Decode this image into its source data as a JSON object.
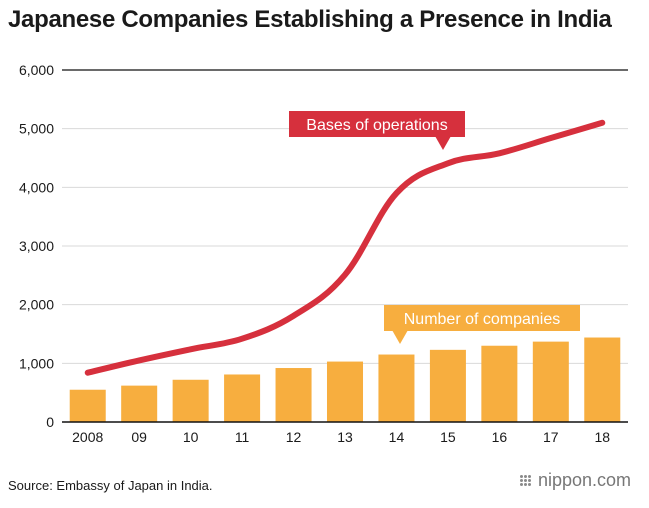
{
  "title": "Japanese Companies Establishing a Presence in India",
  "source": "Source: Embassy of Japan in India.",
  "brand": "nippon.com",
  "colors": {
    "line": "#d6303d",
    "bar": "#f7ae3f",
    "axis": "#111111",
    "grid": "#d9d9d9"
  },
  "chart_data": {
    "type": "bar",
    "categories": [
      "2008",
      "09",
      "10",
      "11",
      "12",
      "13",
      "14",
      "15",
      "16",
      "17",
      "18"
    ],
    "series": [
      {
        "name": "Number of companies",
        "type": "bar",
        "values": [
          550,
          620,
          720,
          810,
          920,
          1030,
          1150,
          1230,
          1300,
          1370,
          1440
        ]
      },
      {
        "name": "Bases of operations",
        "type": "line",
        "values": [
          840,
          1050,
          1240,
          1420,
          1810,
          2510,
          3900,
          4410,
          4580,
          4840,
          5100
        ]
      }
    ],
    "ylim": [
      0,
      6000
    ],
    "yticks": [
      0,
      1000,
      2000,
      3000,
      4000,
      5000,
      6000
    ],
    "ytick_labels": [
      "0",
      "1,000",
      "2,000",
      "3,000",
      "4,000",
      "5,000",
      "6,000"
    ],
    "grid": true
  }
}
